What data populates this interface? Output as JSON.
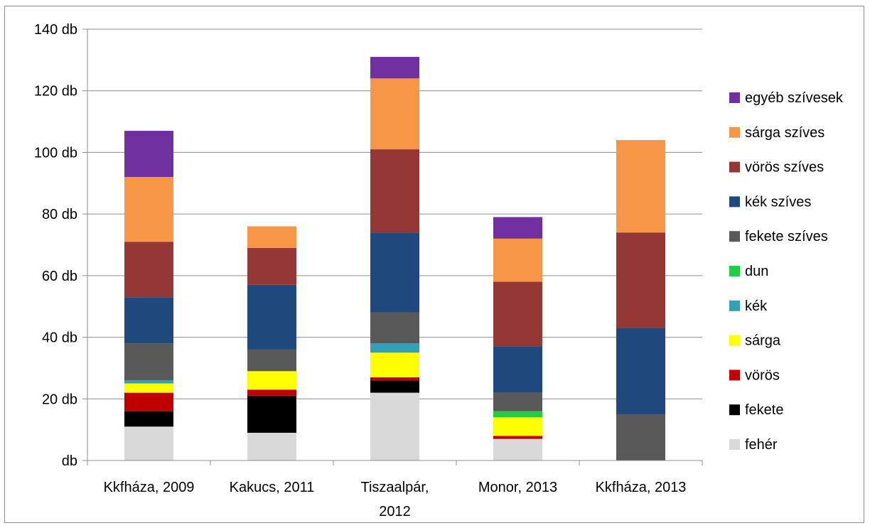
{
  "chart_data": {
    "type": "bar",
    "stacked": true,
    "title": "",
    "xlabel": "",
    "ylabel": "",
    "ylim": [
      0,
      140
    ],
    "y_ticks": [
      {
        "value": 0,
        "label": "db"
      },
      {
        "value": 20,
        "label": "20 db"
      },
      {
        "value": 40,
        "label": "40 db"
      },
      {
        "value": 60,
        "label": "60 db"
      },
      {
        "value": 80,
        "label": "80 db"
      },
      {
        "value": 100,
        "label": "100 db"
      },
      {
        "value": 120,
        "label": "120 db"
      },
      {
        "value": 140,
        "label": "140 db"
      }
    ],
    "grid": true,
    "legend_position": "right",
    "categories": [
      [
        "Kkfháza, 2009"
      ],
      [
        "Kakucs, 2011"
      ],
      [
        "Tiszaalpár,",
        "2012"
      ],
      [
        "Monor, 2013"
      ],
      [
        "Kkfháza, 2013"
      ]
    ],
    "series": [
      {
        "name": "fehér",
        "color": "#d9d9d9",
        "values": [
          11,
          9,
          22,
          7,
          0
        ]
      },
      {
        "name": "fekete",
        "color": "#000000",
        "values": [
          5,
          12,
          4,
          0,
          0
        ]
      },
      {
        "name": "vörös",
        "color": "#c00000",
        "values": [
          6,
          2,
          1,
          1,
          0
        ]
      },
      {
        "name": "sárga",
        "color": "#ffff00",
        "values": [
          3,
          6,
          8,
          6,
          0
        ]
      },
      {
        "name": "kék",
        "color": "#31a0b8",
        "values": [
          1,
          0,
          3,
          0,
          0
        ]
      },
      {
        "name": "dun",
        "color": "#22cc44",
        "values": [
          0,
          0,
          0,
          2,
          0
        ]
      },
      {
        "name": "fekete szíves",
        "color": "#595959",
        "values": [
          12,
          7,
          10,
          6,
          15
        ]
      },
      {
        "name": "kék szíves",
        "color": "#1f497d",
        "values": [
          15,
          21,
          26,
          15,
          28
        ]
      },
      {
        "name": "vörös szíves",
        "color": "#953735",
        "values": [
          18,
          12,
          27,
          21,
          31
        ]
      },
      {
        "name": "sárga szíves",
        "color": "#f79646",
        "values": [
          21,
          7,
          23,
          14,
          30
        ]
      },
      {
        "name": "egyéb szívesek",
        "color": "#7030a0",
        "values": [
          15,
          0,
          7,
          7,
          0
        ]
      }
    ]
  }
}
